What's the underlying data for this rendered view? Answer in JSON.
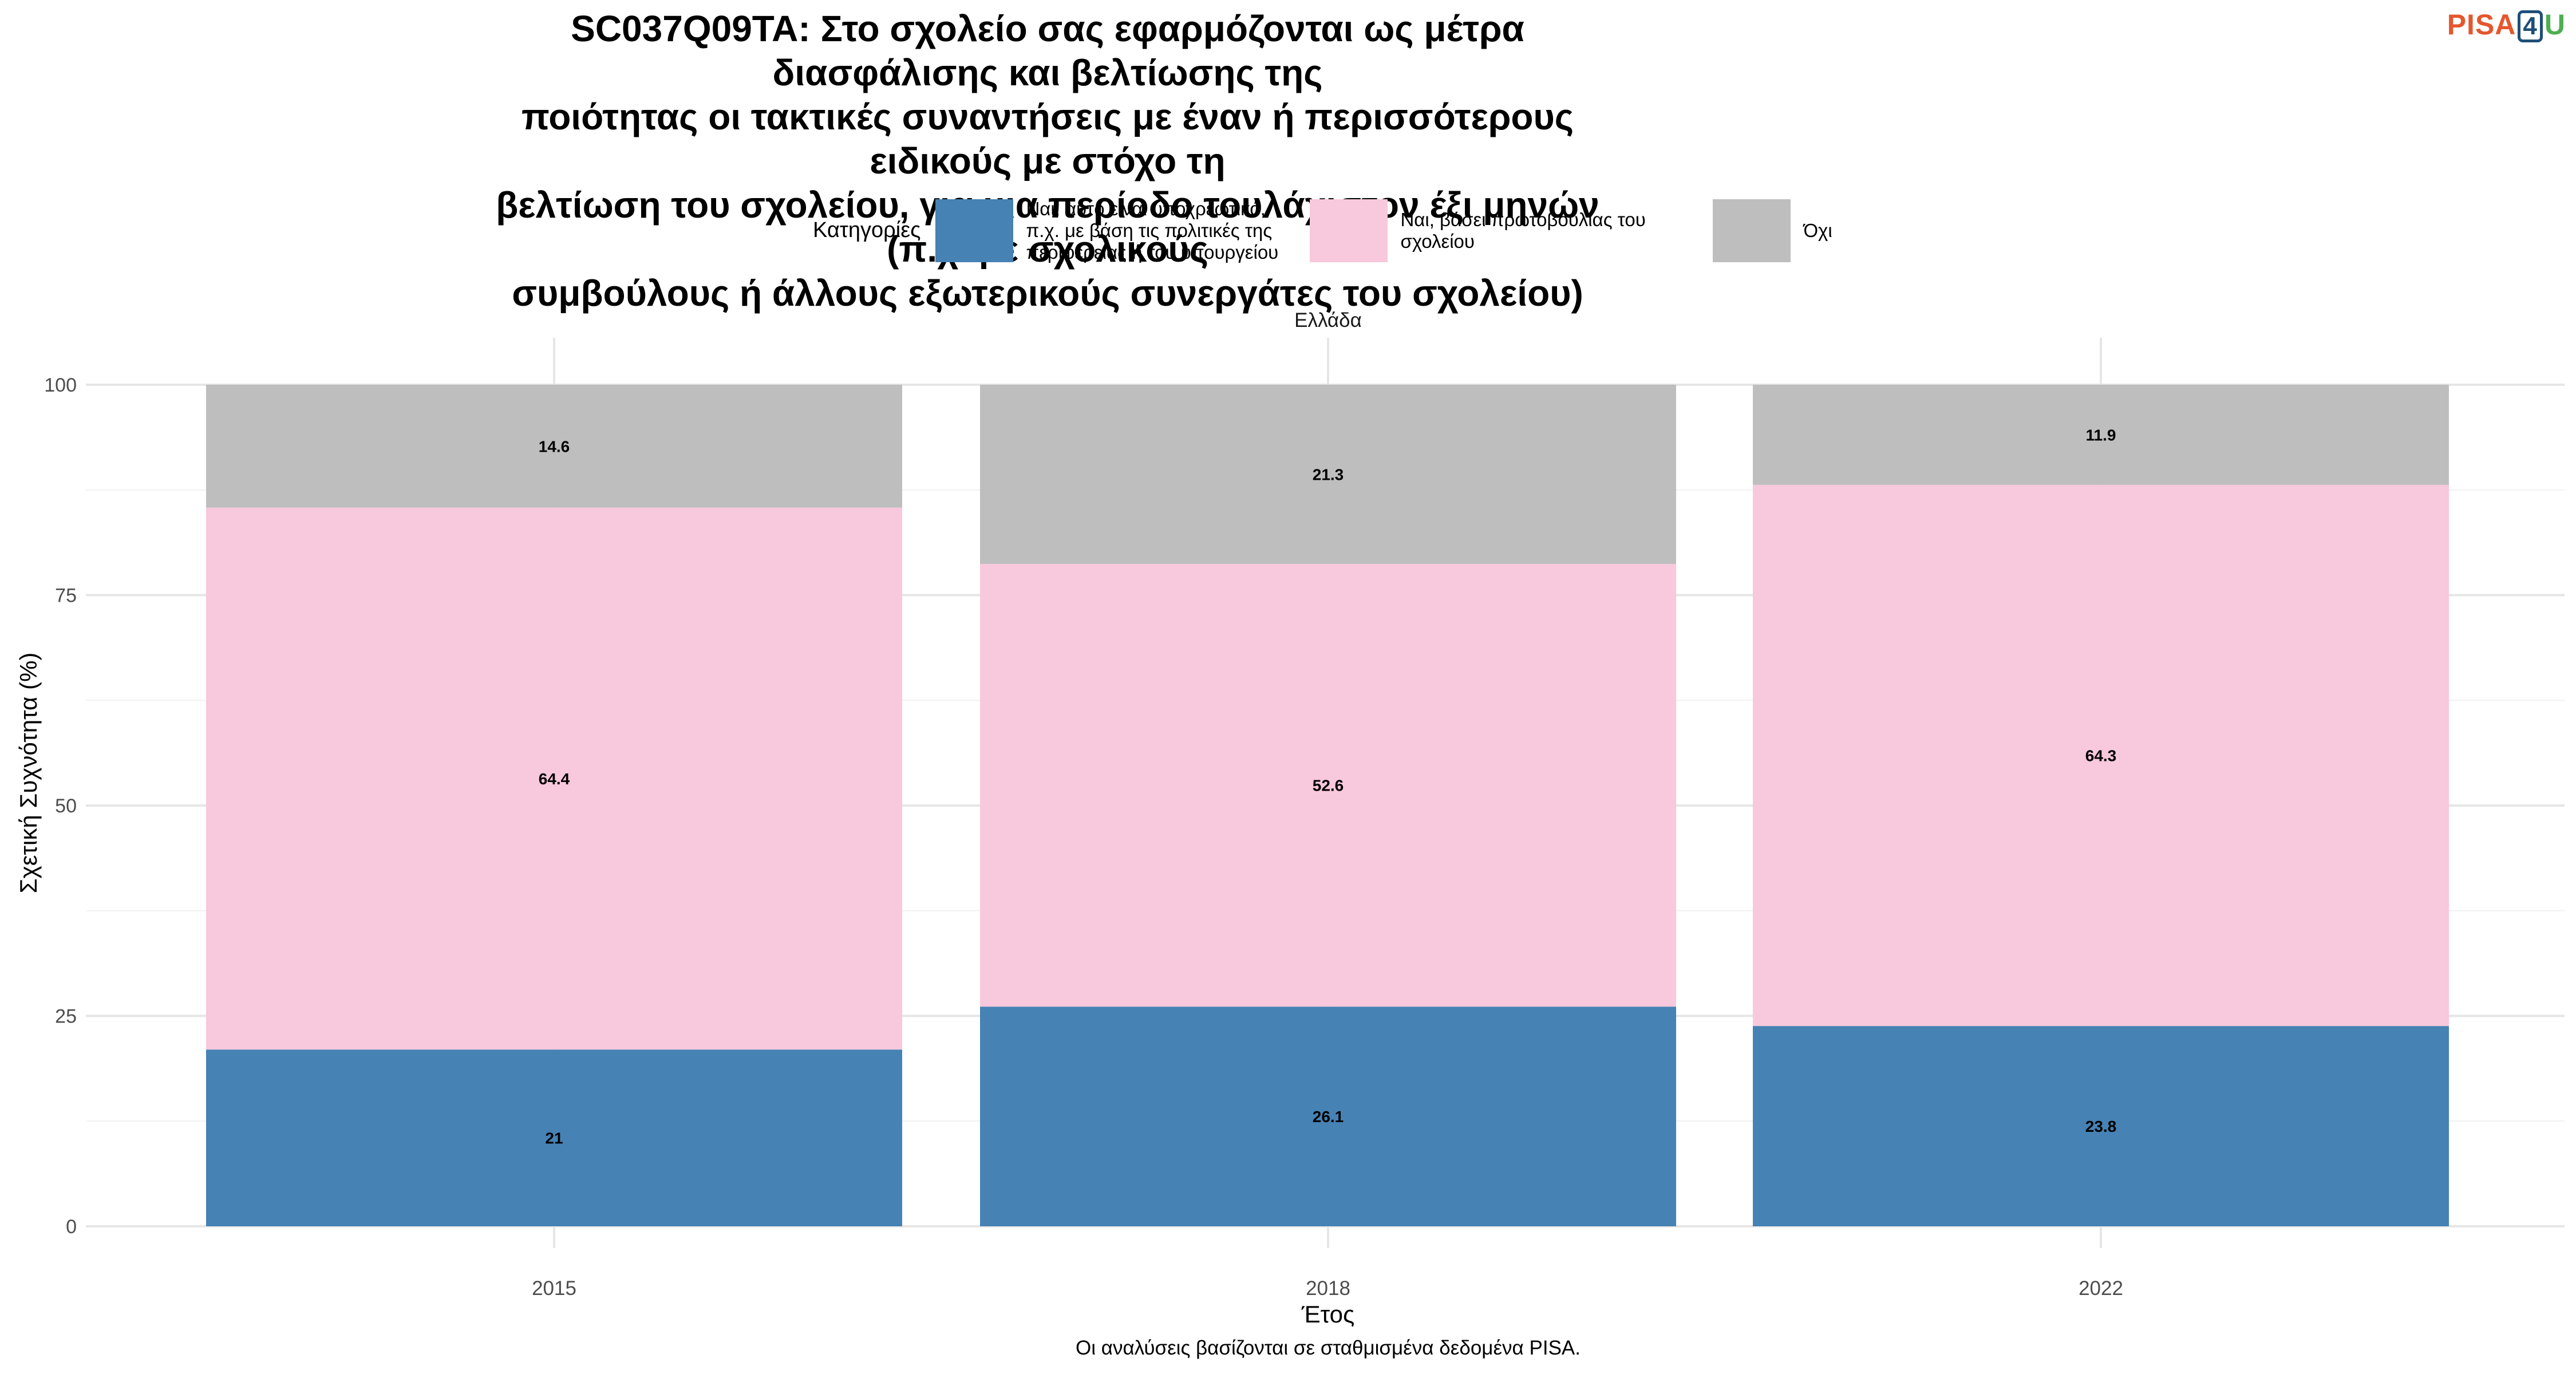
{
  "title_lines": [
    "SC037Q09TA: Στο σχολείο σας εφαρμόζονται ως μέτρα διασφάλισης και βελτίωσης της",
    "ποιότητας οι τακτικές συναντήσεις με έναν ή περισσότερους ειδικούς με στόχο τη",
    "βελτίωση του σχολείου, για μια περίοδο τουλάχιστον έξι μηνών (π.χ. με σχολικούς",
    "συμβούλους ή άλλους εξωτερικούς συνεργάτες του σχολείου)"
  ],
  "logo": {
    "part1": "PISA",
    "part2": "4",
    "part3": "U"
  },
  "legend": {
    "title": "Κατηγορίες",
    "items": [
      {
        "label": "Ναι, αυτό είναι υποχρεωτικό, π.χ. με βάση τις πολιτικές της περιφέρειας ή του υπουργείου",
        "color": "#4682b4"
      },
      {
        "label": "Ναι, βάσει πρωτοβουλίας του σχολείου",
        "color": "#f8c8dc"
      },
      {
        "label": "Όχι",
        "color": "#bebebe"
      }
    ]
  },
  "facet_label": "Ελλάδα",
  "caption": "Οι αναλύσεις βασίζονται σε σταθμισμένα δεδομένα PISA.",
  "chart_data": {
    "type": "bar",
    "stacked": true,
    "categories": [
      "2015",
      "2018",
      "2022"
    ],
    "series": [
      {
        "name": "Ναι, αυτό είναι υποχρεωτικό, π.χ. με βάση τις πολιτικές της περιφέρειας ή του υπουργείου",
        "values": [
          21,
          26.1,
          23.8
        ],
        "labels": [
          "21",
          "26.1",
          "23.8"
        ],
        "color": "#4682b4"
      },
      {
        "name": "Ναι, βάσει πρωτοβουλίας του σχολείου",
        "values": [
          64.4,
          52.6,
          64.3
        ],
        "labels": [
          "64.4",
          "52.6",
          "64.3"
        ],
        "color": "#f8c8dc"
      },
      {
        "name": "Όχι",
        "values": [
          14.6,
          21.3,
          11.9
        ],
        "labels": [
          "14.6",
          "21.3",
          "11.9"
        ],
        "color": "#bebebe"
      }
    ],
    "xlabel": "Έτος",
    "ylabel": "Σχετική Συχνότητα (%)",
    "ylim": [
      0,
      100
    ],
    "yticks": [
      0,
      25,
      50,
      75,
      100
    ],
    "grid": true,
    "legend_position": "top"
  }
}
